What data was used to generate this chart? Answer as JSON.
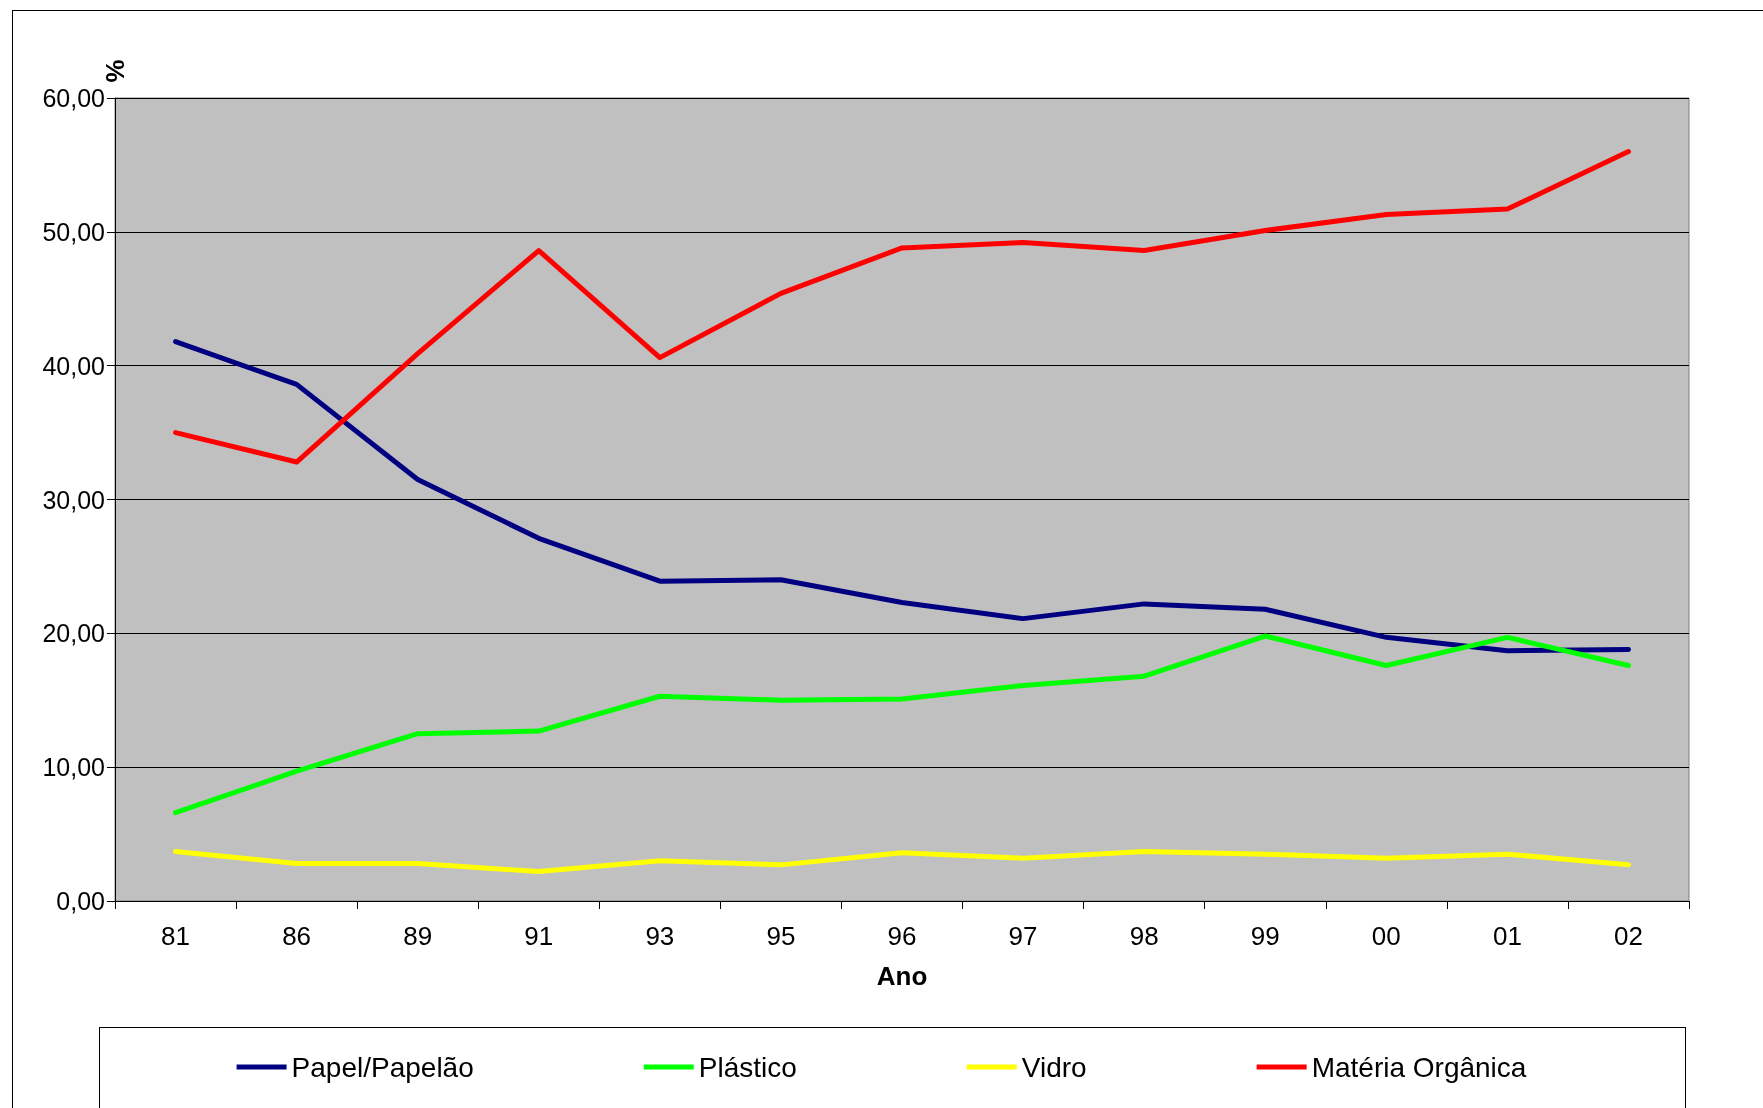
{
  "chart_data": {
    "type": "line",
    "xlabel": "Ano",
    "ylabel": "%",
    "categories": [
      "81",
      "86",
      "89",
      "91",
      "93",
      "95",
      "96",
      "97",
      "98",
      "99",
      "00",
      "01",
      "02"
    ],
    "series": [
      {
        "name": "Papel/Papelão",
        "color": "#000080",
        "values": [
          41.8,
          38.6,
          31.5,
          27.1,
          23.9,
          24.0,
          22.3,
          21.1,
          22.2,
          21.8,
          19.7,
          18.7,
          18.8
        ]
      },
      {
        "name": "Plástico",
        "color": "#00ff00",
        "values": [
          6.6,
          9.7,
          12.5,
          12.7,
          15.3,
          15.0,
          15.1,
          16.1,
          16.8,
          19.8,
          17.6,
          19.7,
          17.6
        ]
      },
      {
        "name": "Vidro",
        "color": "#ffff00",
        "values": [
          3.7,
          2.8,
          2.8,
          2.2,
          3.0,
          2.7,
          3.6,
          3.2,
          3.7,
          3.5,
          3.2,
          3.5,
          2.7
        ]
      },
      {
        "name": "Matéria Orgânica",
        "color": "#ff0000",
        "values": [
          35.0,
          32.8,
          40.9,
          48.6,
          40.6,
          45.4,
          48.8,
          49.2,
          48.6,
          50.1,
          51.3,
          51.7,
          56.0
        ]
      }
    ],
    "ylim": [
      0,
      60
    ],
    "yticks": [
      {
        "value": 0,
        "label": "0,00"
      },
      {
        "value": 10,
        "label": "10,00"
      },
      {
        "value": 20,
        "label": "20,00"
      },
      {
        "value": 30,
        "label": "30,00"
      },
      {
        "value": 40,
        "label": "40,00"
      },
      {
        "value": 50,
        "label": "50,00"
      },
      {
        "value": 60,
        "label": "60,00"
      }
    ],
    "grid": "y",
    "legend": "bottom",
    "marker": "none",
    "line_style": "solid"
  }
}
